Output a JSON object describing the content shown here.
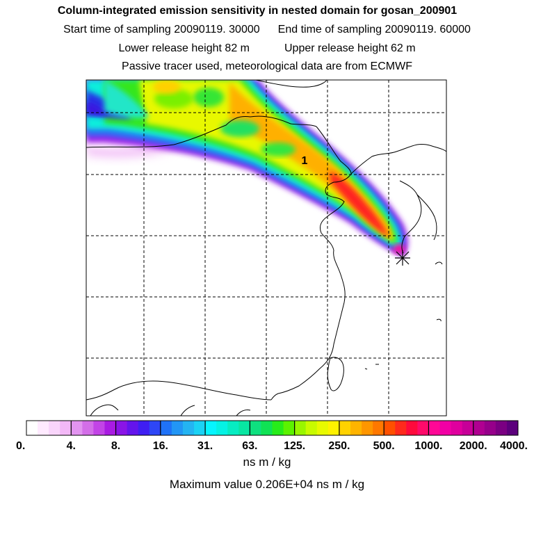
{
  "title": "Column-integrated emission sensitivity in nested domain for gosan_200901",
  "sampling": {
    "start": "Start time of sampling 20090119. 30000",
    "end": "End time of sampling 20090119. 60000"
  },
  "release": {
    "lower": "Lower release height   82 m",
    "upper": "Upper release height   62 m"
  },
  "tracer_note": "Passive tracer used, meteorological data are from ECMWF",
  "map": {
    "label": "1",
    "receptor_marker": "star-icon",
    "gridlines": "dashed"
  },
  "colorbar": {
    "tick_labels": [
      "0.",
      "4.",
      "8.",
      "16.",
      "31.",
      "63.",
      "125.",
      "250.",
      "500.",
      "1000.",
      "2000.",
      "4000."
    ],
    "colors": [
      "#ffffff",
      "#ffeaff",
      "#f9d5fb",
      "#f3b8f7",
      "#e294f0",
      "#d36ee8",
      "#c244e6",
      "#a91be2",
      "#8a14e6",
      "#6414ec",
      "#3f1ef2",
      "#2e46f6",
      "#1f72f7",
      "#2296f5",
      "#24b4f2",
      "#1bd2f4",
      "#06f5ff",
      "#05f2e4",
      "#06ecc2",
      "#08e6a2",
      "#0ee07f",
      "#10e254",
      "#27ec1a",
      "#5cf200",
      "#99f600",
      "#c8fb00",
      "#e8fa00",
      "#fff200",
      "#ffd200",
      "#ffb400",
      "#ff9600",
      "#ff7800",
      "#ff5000",
      "#ff2a1c",
      "#ff0a3c",
      "#ff0a6a",
      "#ff0896",
      "#f200a5",
      "#e0009e",
      "#c70098",
      "#b00091",
      "#96008a",
      "#7a0082",
      "#5c007c"
    ],
    "unit": "ns m / kg"
  },
  "maximum": "Maximum value  0.206E+04 ns m / kg"
}
